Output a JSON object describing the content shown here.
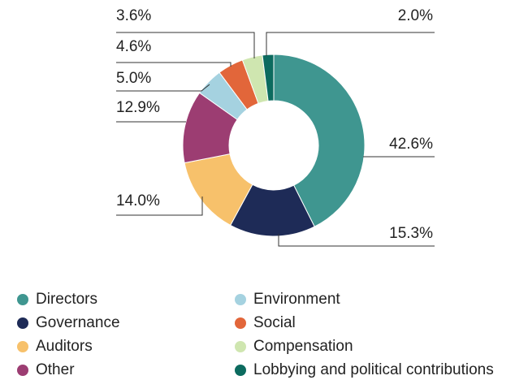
{
  "chart_data": {
    "type": "donut",
    "categories": [
      "Directors",
      "Governance",
      "Auditors",
      "Other",
      "Environment",
      "Social",
      "Compensation",
      "Lobbying and political contributions"
    ],
    "values": [
      42.6,
      15.3,
      14.0,
      12.9,
      5.0,
      4.6,
      3.6,
      2.0
    ],
    "value_labels": [
      "42.6%",
      "15.3%",
      "14.0%",
      "12.9%",
      "5.0%",
      "4.6%",
      "3.6%",
      "2.0%"
    ],
    "colors": [
      "#3f9690",
      "#1e2b57",
      "#f7c16b",
      "#9c3d72",
      "#a5d2e0",
      "#e2663a",
      "#cfe6b0",
      "#0c6b5f"
    ],
    "legend": "bottom"
  }
}
